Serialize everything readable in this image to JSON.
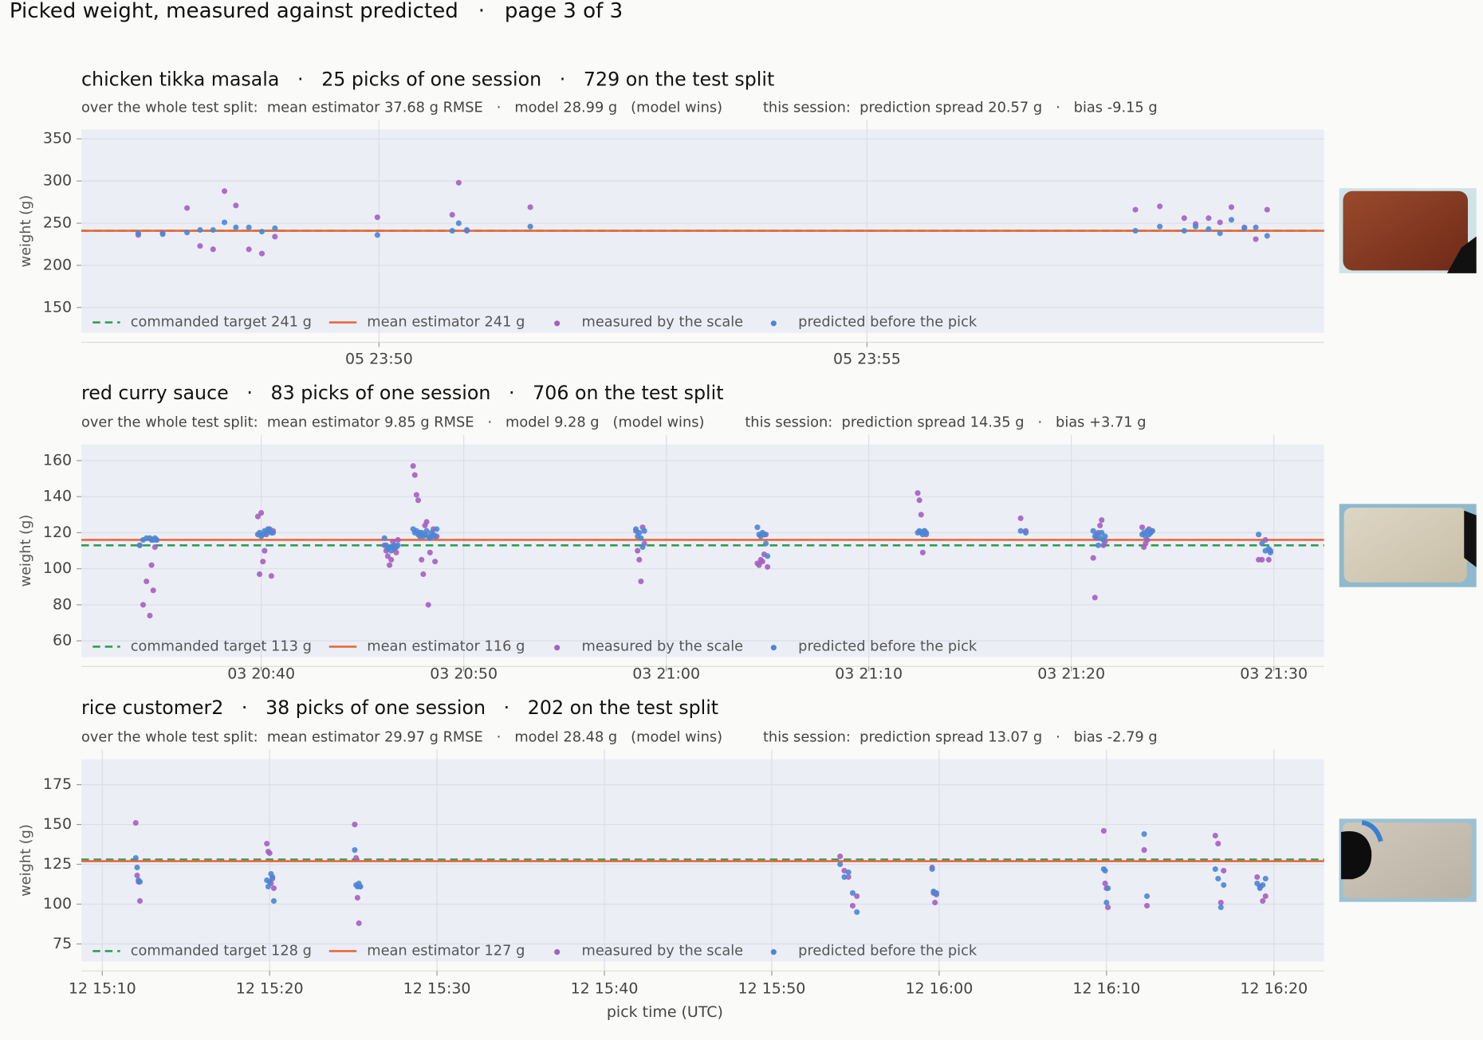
{
  "title": "Picked weight, measured against predicted   ·   page 3 of 3",
  "chart_data": [
    {
      "type": "scatter",
      "title": "chicken tikka masala   ·   25 picks of one session   ·   729 on the test split",
      "subtitle": "over the whole test split:  mean estimator 37.68 g RMSE   ·   model 28.99 g   (model wins)         this session:  prediction spread 20.57 g   ·   bias -9.15 g",
      "ylabel": "weight (g)",
      "x": [
        "05 23:47:32",
        "05 23:47:47",
        "05 23:48:02",
        "05 23:48:10",
        "05 23:48:18",
        "05 23:48:25",
        "05 23:48:32",
        "05 23:48:40",
        "05 23:48:48",
        "05 23:48:56",
        "05 23:49:59",
        "05 23:50:45",
        "05 23:50:49",
        "05 23:50:54",
        "05 23:51:33",
        "05 23:57:45",
        "05 23:58:00",
        "05 23:58:15",
        "05 23:58:22",
        "05 23:58:30",
        "05 23:58:37",
        "05 23:58:44",
        "05 23:58:52",
        "05 23:58:59",
        "05 23:59:06"
      ],
      "xlim": [
        "05 23:46:57",
        "05 23:59:41"
      ],
      "xticks": [
        "05 23:50",
        "05 23:55"
      ],
      "ylim": [
        120,
        361
      ],
      "yticks": [
        150,
        200,
        250,
        300,
        350
      ],
      "grid": true,
      "series": [
        {
          "name": "measured by the scale",
          "color": "#a45fc1",
          "values": [
            236,
            238,
            268,
            223,
            219,
            288,
            271,
            219,
            214,
            234,
            257,
            260,
            298,
            241,
            269,
            266,
            270,
            256,
            249,
            256,
            251,
            269,
            245,
            231,
            266
          ]
        },
        {
          "name": "predicted before the pick",
          "color": "#4a86d4",
          "values": [
            238,
            237,
            239,
            242,
            242,
            251,
            245,
            245,
            240,
            244,
            236,
            241,
            250,
            242,
            246,
            241,
            246,
            241,
            246,
            243,
            238,
            254,
            244,
            245,
            235
          ]
        }
      ],
      "reference_lines": [
        {
          "name": "commanded target 241 g",
          "value": 241,
          "color": "#2e9e57",
          "style": "dashed"
        },
        {
          "name": "mean estimator 241 g",
          "value": 241,
          "color": "#e8683a",
          "style": "solid"
        }
      ]
    },
    {
      "type": "scatter",
      "title": "red curry sauce   ·   83 picks of one session   ·   706 on the test split",
      "subtitle": "over the whole test split:  mean estimator 9.85 g RMSE   ·   model 9.28 g   (model wins)         this session:  prediction spread 14.35 g   ·   bias +3.71 g",
      "ylabel": "weight (g)",
      "x": [
        "03 20:34:00",
        "03 20:34:10",
        "03 20:34:20",
        "03 20:34:30",
        "03 20:34:35",
        "03 20:34:40",
        "03 20:34:45",
        "03 20:34:50",
        "03 20:39:50",
        "03 20:39:55",
        "03 20:40:00",
        "03 20:40:05",
        "03 20:40:10",
        "03 20:40:15",
        "03 20:40:20",
        "03 20:40:25",
        "03 20:40:30",
        "03 20:40:35",
        "03 20:46:05",
        "03 20:46:10",
        "03 20:46:15",
        "03 20:46:20",
        "03 20:46:25",
        "03 20:46:30",
        "03 20:46:35",
        "03 20:46:40",
        "03 20:46:45",
        "03 20:47:30",
        "03 20:47:35",
        "03 20:47:40",
        "03 20:47:45",
        "03 20:47:50",
        "03 20:47:55",
        "03 20:48:00",
        "03 20:48:05",
        "03 20:48:10",
        "03 20:48:15",
        "03 20:48:20",
        "03 20:48:25",
        "03 20:48:30",
        "03 20:48:35",
        "03 20:48:40",
        "03 20:58:30",
        "03 20:58:35",
        "03 20:58:40",
        "03 20:58:45",
        "03 20:58:50",
        "03 20:58:55",
        "03 21:04:30",
        "03 21:04:35",
        "03 21:04:40",
        "03 21:04:45",
        "03 21:04:50",
        "03 21:04:55",
        "03 21:05:00",
        "03 21:12:25",
        "03 21:12:30",
        "03 21:12:35",
        "03 21:12:40",
        "03 21:12:45",
        "03 21:12:50",
        "03 21:17:30",
        "03 21:17:45",
        "03 21:21:05",
        "03 21:21:10",
        "03 21:21:15",
        "03 21:21:20",
        "03 21:21:25",
        "03 21:21:30",
        "03 21:21:35",
        "03 21:21:40",
        "03 21:23:30",
        "03 21:23:35",
        "03 21:23:40",
        "03 21:23:45",
        "03 21:23:50",
        "03 21:23:55",
        "03 21:24:00",
        "03 21:29:15",
        "03 21:29:25",
        "03 21:29:35",
        "03 21:29:45",
        "03 21:29:50"
      ],
      "xlim": [
        "03 20:31:07",
        "03 21:32:29"
      ],
      "xticks": [
        "03 20:40",
        "03 20:50",
        "03 21:00",
        "03 21:10",
        "03 21:20",
        "03 21:30"
      ],
      "ylim": [
        51,
        169
      ],
      "yticks": [
        60,
        80,
        100,
        120,
        140,
        160
      ],
      "grid": true,
      "series": [
        {
          "name": "measured by the scale",
          "color": "#a45fc1",
          "values": [
            113,
            80,
            93,
            74,
            102,
            88,
            112,
            116,
            129,
            97,
            131,
            104,
            110,
            119,
            121,
            122,
            96,
            121,
            113,
            110,
            107,
            102,
            105,
            115,
            111,
            109,
            116,
            157,
            152,
            141,
            138,
            120,
            105,
            97,
            124,
            126,
            80,
            109,
            118,
            122,
            104,
            118,
            121,
            110,
            105,
            93,
            123,
            114,
            103,
            102,
            105,
            104,
            108,
            119,
            101,
            142,
            138,
            130,
            109,
            121,
            119,
            128,
            121,
            106,
            84,
            117,
            120,
            124,
            127,
            113,
            115,
            123,
            112,
            114,
            116,
            122,
            120,
            121,
            105,
            105,
            116,
            105,
            110
          ]
        },
        {
          "name": "predicted before the pick",
          "color": "#4a86d4",
          "values": [
            113,
            116,
            117,
            117,
            116,
            116,
            117,
            116,
            119,
            120,
            118,
            119,
            121,
            120,
            122,
            121,
            120,
            120,
            117,
            113,
            111,
            112,
            110,
            112,
            113,
            112,
            113,
            122,
            120,
            121,
            119,
            118,
            120,
            118,
            119,
            121,
            118,
            117,
            120,
            119,
            118,
            122,
            122,
            118,
            120,
            117,
            112,
            121,
            123,
            119,
            118,
            120,
            119,
            114,
            107,
            120,
            121,
            120,
            119,
            121,
            120,
            121,
            120,
            121,
            118,
            119,
            113,
            117,
            120,
            116,
            118,
            119,
            120,
            118,
            121,
            119,
            120,
            121,
            119,
            114,
            110,
            111,
            109
          ]
        }
      ],
      "reference_lines": [
        {
          "name": "commanded target 113 g",
          "value": 113,
          "color": "#2e9e57",
          "style": "dashed"
        },
        {
          "name": "mean estimator 116 g",
          "value": 116,
          "color": "#e8683a",
          "style": "solid"
        }
      ]
    },
    {
      "type": "scatter",
      "title": "rice customer2   ·   38 picks of one session   ·   202 on the test split",
      "subtitle": "over the whole test split:  mean estimator 29.97 g RMSE   ·   model 28.48 g   (model wins)         this session:  prediction spread 13.07 g   ·   bias -2.79 g",
      "ylabel": "weight (g)",
      "xlabel": "pick time (UTC)",
      "x": [
        "12 15:12:00",
        "12 15:12:05",
        "12 15:12:10",
        "12 15:12:15",
        "12 15:19:50",
        "12 15:19:55",
        "12 15:20:00",
        "12 15:20:05",
        "12 15:20:10",
        "12 15:20:15",
        "12 15:25:05",
        "12 15:25:10",
        "12 15:25:15",
        "12 15:25:20",
        "12 15:25:25",
        "12 15:54:05",
        "12 15:54:20",
        "12 15:54:35",
        "12 15:54:50",
        "12 15:55:05",
        "12 15:59:35",
        "12 15:59:40",
        "12 15:59:45",
        "12 15:59:50",
        "12 16:09:50",
        "12 16:09:55",
        "12 16:10:00",
        "12 16:10:05",
        "12 16:12:15",
        "12 16:12:25",
        "12 16:16:30",
        "12 16:16:40",
        "12 16:16:50",
        "12 16:17:00",
        "12 16:19:00",
        "12 16:19:10",
        "12 16:19:20",
        "12 16:19:30"
      ],
      "xlim": [
        "12 15:08:45",
        "12 16:23:00"
      ],
      "xticks": [
        "12 15:10",
        "12 15:20",
        "12 15:30",
        "12 15:40",
        "12 15:50",
        "12 16:00",
        "12 16:10",
        "12 16:20"
      ],
      "ylim": [
        64,
        191
      ],
      "yticks": [
        75,
        100,
        125,
        150,
        175
      ],
      "grid": true,
      "series": [
        {
          "name": "measured by the scale",
          "color": "#a45fc1",
          "values": [
            151,
            118,
            114,
            102,
            138,
            133,
            132,
            113,
            116,
            110,
            150,
            129,
            104,
            88,
            111,
            130,
            121,
            117,
            99,
            105,
            123,
            107,
            101,
            106,
            146,
            113,
            110,
            98,
            134,
            99,
            143,
            138,
            101,
            121,
            117,
            111,
            102,
            105
          ]
        },
        {
          "name": "predicted before the pick",
          "color": "#4a86d4",
          "values": [
            129,
            123,
            115,
            114,
            115,
            111,
            114,
            119,
            117,
            102,
            134,
            112,
            111,
            113,
            111,
            125,
            117,
            120,
            107,
            95,
            122,
            108,
            107,
            107,
            122,
            121,
            101,
            110,
            144,
            105,
            122,
            116,
            98,
            112,
            113,
            110,
            112,
            116
          ]
        }
      ],
      "reference_lines": [
        {
          "name": "commanded target 128 g",
          "value": 128,
          "color": "#2e9e57",
          "style": "dashed"
        },
        {
          "name": "mean estimator 127 g",
          "value": 127,
          "color": "#e8683a",
          "style": "solid"
        }
      ]
    }
  ]
}
